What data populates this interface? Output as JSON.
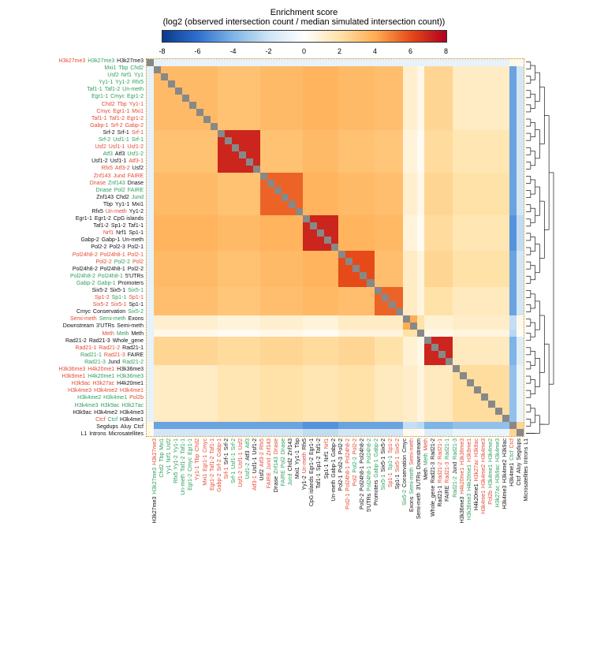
{
  "title": {
    "line1": "Enrichment score",
    "line2": "(log2 (observed intersection count / median simulated intersection count))"
  },
  "colorbar": {
    "min": -8,
    "max": 8,
    "ticks": [
      -8,
      -6,
      -4,
      -2,
      0,
      2,
      4,
      6,
      8
    ],
    "colors_stops": [
      "#0a3a8c",
      "#2e6fcf",
      "#7eb4e6",
      "#cfe4f5",
      "#ffffff",
      "#ffe2a8",
      "#ffad52",
      "#e64a19",
      "#b00020"
    ]
  },
  "label_colors": {
    "green": "#2e9e5b",
    "red": "#e34a33",
    "black": "#111111"
  },
  "row_labels": [
    [
      [
        "H3k27me3",
        "red"
      ],
      [
        "H3k27me3",
        "green"
      ],
      [
        "H3k27me3",
        "black"
      ]
    ],
    [
      [
        "Mxi1",
        "green"
      ],
      [
        "Tbp",
        "green"
      ],
      [
        "Chd2",
        "green"
      ]
    ],
    [
      [
        "Usf2",
        "green"
      ],
      [
        "Nrf1",
        "green"
      ],
      [
        "Yy1",
        "green"
      ]
    ],
    [
      [
        "Yy1-1",
        "green"
      ],
      [
        "Yy1-2",
        "green"
      ],
      [
        "Rfx5",
        "green"
      ]
    ],
    [
      [
        "Taf1-1",
        "green"
      ],
      [
        "Taf1-2",
        "green"
      ],
      [
        "Un-meth",
        "green"
      ]
    ],
    [
      [
        "Egr1-1",
        "green"
      ],
      [
        "Cmyc",
        "green"
      ],
      [
        "Egr1-2",
        "green"
      ]
    ],
    [
      [
        "Chd2",
        "red"
      ],
      [
        "Tbp",
        "red"
      ],
      [
        "Yy1-1",
        "red"
      ]
    ],
    [
      [
        "Cmyc",
        "red"
      ],
      [
        "Egr1-1",
        "red"
      ],
      [
        "Mxi1",
        "red"
      ]
    ],
    [
      [
        "Taf1-1",
        "red"
      ],
      [
        "Taf1-2",
        "red"
      ],
      [
        "Egr1-2",
        "red"
      ]
    ],
    [
      [
        "Gabp-1",
        "red"
      ],
      [
        "Srf-2",
        "red"
      ],
      [
        "Gabp-2",
        "red"
      ]
    ],
    [
      [
        "Srf-2",
        "black"
      ],
      [
        "Srf-1",
        "black"
      ],
      [
        "Srf-1",
        "red"
      ]
    ],
    [
      [
        "Srf-2",
        "green"
      ],
      [
        "Usf1-1",
        "green"
      ],
      [
        "Srf-1",
        "green"
      ]
    ],
    [
      [
        "Usf2",
        "red"
      ],
      [
        "Usf1-1",
        "red"
      ],
      [
        "Usf1-2",
        "red"
      ]
    ],
    [
      [
        "Atf3",
        "green"
      ],
      [
        "Atf3",
        "black"
      ],
      [
        "Usf1-2",
        "green"
      ]
    ],
    [
      [
        "Usf1-2",
        "black"
      ],
      [
        "Usf1-1",
        "black"
      ],
      [
        "Atf3-1",
        "red"
      ]
    ],
    [
      [
        "Rfx5",
        "red"
      ],
      [
        "Atf3-2",
        "red"
      ],
      [
        "Usf2",
        "black"
      ]
    ],
    [
      [
        "Znf143",
        "red"
      ],
      [
        "Jund",
        "red"
      ],
      [
        "FAIRE",
        "red"
      ]
    ],
    [
      [
        "Dnase",
        "red"
      ],
      [
        "Znf143",
        "green"
      ],
      [
        "Dnase",
        "black"
      ]
    ],
    [
      [
        "Dnase",
        "green"
      ],
      [
        "Pol2",
        "green"
      ],
      [
        "FAIRE",
        "green"
      ]
    ],
    [
      [
        "Znf143",
        "black"
      ],
      [
        "Chd2",
        "black"
      ],
      [
        "Jund",
        "green"
      ]
    ],
    [
      [
        "Tbp",
        "black"
      ],
      [
        "Yy1-1",
        "black"
      ],
      [
        "Mxi1",
        "black"
      ]
    ],
    [
      [
        "Rfx5",
        "black"
      ],
      [
        "Un-meth",
        "red"
      ],
      [
        "Yy1-2",
        "black"
      ]
    ],
    [
      [
        "Egr1-1",
        "black"
      ],
      [
        "Egr1-2",
        "black"
      ],
      [
        "CpG islands",
        "black"
      ]
    ],
    [
      [
        "Taf1-2",
        "black"
      ],
      [
        "Sp1-2",
        "black"
      ],
      [
        "Taf1-1",
        "black"
      ]
    ],
    [
      [
        "Nrf1",
        "red"
      ],
      [
        "Nrf1",
        "black"
      ],
      [
        "Sp1-1",
        "black"
      ]
    ],
    [
      [
        "Gabp-2",
        "black"
      ],
      [
        "Gabp-1",
        "black"
      ],
      [
        "Un-meth",
        "black"
      ]
    ],
    [
      [
        "Pol2-2",
        "black"
      ],
      [
        "Pol2-3",
        "black"
      ],
      [
        "Pol2-1",
        "black"
      ]
    ],
    [
      [
        "Pol24h8-2",
        "red"
      ],
      [
        "Pol24h8-1",
        "red"
      ],
      [
        "Pol2-1",
        "red"
      ]
    ],
    [
      [
        "Pol2-2",
        "red"
      ],
      [
        "Pol2-2",
        "green"
      ],
      [
        "Pol2",
        "red"
      ]
    ],
    [
      [
        "Pol24h8-2",
        "black"
      ],
      [
        "Pol24h8-1",
        "black"
      ],
      [
        "Pol2-2",
        "black"
      ]
    ],
    [
      [
        "Pol24h8-2",
        "green"
      ],
      [
        "Pol24h8-1",
        "green"
      ],
      [
        "5'UTRs",
        "black"
      ]
    ],
    [
      [
        "Gabp-2",
        "green"
      ],
      [
        "Gabp-1",
        "green"
      ],
      [
        "Promoters",
        "black"
      ]
    ],
    [
      [
        "Six5-2",
        "black"
      ],
      [
        "Six5-1",
        "black"
      ],
      [
        "Six5-1",
        "green"
      ]
    ],
    [
      [
        "Sp1-2",
        "red"
      ],
      [
        "Sp1-1",
        "green"
      ],
      [
        "Sp1-1",
        "red"
      ]
    ],
    [
      [
        "Six5-2",
        "red"
      ],
      [
        "Six5-1",
        "red"
      ],
      [
        "Sp1-1",
        "black"
      ]
    ],
    [
      [
        "Cmyc",
        "black"
      ],
      [
        "Conservation",
        "black"
      ],
      [
        "Six5-2",
        "green"
      ]
    ],
    [
      [
        "Semi-meth",
        "red"
      ],
      [
        "Semi-meth",
        "green"
      ],
      [
        "Exons",
        "black"
      ]
    ],
    [
      [
        "Downstream",
        "black"
      ],
      [
        "3'UTRs",
        "black"
      ],
      [
        "Semi-meth",
        "black"
      ]
    ],
    [
      [
        "Meth",
        "red"
      ],
      [
        "Meth",
        "green"
      ],
      [
        "Meth",
        "black"
      ]
    ],
    [
      [
        "Rad21-2",
        "black"
      ],
      [
        "Rad21-3",
        "black"
      ],
      [
        "Whole_gene",
        "black"
      ]
    ],
    [
      [
        "Rad21-1",
        "red"
      ],
      [
        "Rad21-2",
        "red"
      ],
      [
        "Rad21-1",
        "black"
      ]
    ],
    [
      [
        "Rad21-1",
        "green"
      ],
      [
        "Rad21-3",
        "red"
      ],
      [
        "FAIRE",
        "black"
      ]
    ],
    [
      [
        "Rad21-3",
        "green"
      ],
      [
        "Jund",
        "black"
      ],
      [
        "Rad21-2",
        "green"
      ]
    ],
    [
      [
        "H3k36me3",
        "red"
      ],
      [
        "H4k20me1",
        "red"
      ],
      [
        "H3k36me3",
        "black"
      ]
    ],
    [
      [
        "H3k9me1",
        "red"
      ],
      [
        "H4k20me1",
        "green"
      ],
      [
        "H3k36me3",
        "green"
      ]
    ],
    [
      [
        "H3k9ac",
        "red"
      ],
      [
        "H3k27ac",
        "red"
      ],
      [
        "H4k20me1",
        "black"
      ]
    ],
    [
      [
        "H3k4me3",
        "red"
      ],
      [
        "H3k4me2",
        "red"
      ],
      [
        "H3k4me1",
        "red"
      ]
    ],
    [
      [
        "H3k4me2",
        "green"
      ],
      [
        "H3k4me1",
        "green"
      ],
      [
        "Pol2b",
        "red"
      ]
    ],
    [
      [
        "H3k4me3",
        "green"
      ],
      [
        "H3k9ac",
        "green"
      ],
      [
        "H3k27ac",
        "green"
      ]
    ],
    [
      [
        "H3k9ac",
        "black"
      ],
      [
        "H3k4me2",
        "black"
      ],
      [
        "H3k4me3",
        "black"
      ]
    ],
    [
      [
        "Ctcf",
        "red"
      ],
      [
        "Ctcf",
        "green"
      ],
      [
        "H3k4me1",
        "black"
      ]
    ],
    [
      [
        "Segdups",
        "black"
      ],
      [
        "Aluy",
        "black"
      ],
      [
        "Ctcf",
        "black"
      ]
    ],
    [
      [
        "L1",
        "black"
      ],
      [
        "Introns",
        "black"
      ],
      [
        "Microsatellites",
        "black"
      ]
    ]
  ],
  "heatmap": {
    "type": "heatmap",
    "n": 53,
    "diag_color": "#888888",
    "background_color": "#ffffff",
    "grid_color": "none",
    "border_style": "1px dotted #b8860b",
    "blocks": [
      {
        "r0": 0,
        "r1": 0,
        "c0": 0,
        "c1": 0,
        "v": 0,
        "note": "H3k27me3 row/col",
        "row_override": [
          0,
          0,
          6
        ]
      },
      {
        "r0": 0,
        "r1": 0,
        "c0": 1,
        "c1": 50,
        "v": -2
      },
      {
        "r0": 0,
        "r1": 0,
        "c0": 51,
        "c1": 52,
        "v": 0.5
      },
      {
        "r0": 1,
        "r1": 9,
        "c0": 1,
        "c1": 35,
        "v": 3.5
      },
      {
        "r0": 1,
        "r1": 9,
        "c0": 36,
        "c1": 38,
        "v": 1
      },
      {
        "r0": 1,
        "r1": 9,
        "c0": 39,
        "c1": 42,
        "v": 2.5
      },
      {
        "r0": 1,
        "r1": 9,
        "c0": 43,
        "c1": 50,
        "v": 1.2
      },
      {
        "r0": 1,
        "r1": 9,
        "c0": 51,
        "c1": 52,
        "v": -4
      },
      {
        "r0": 10,
        "r1": 15,
        "c0": 1,
        "c1": 9,
        "v": 3
      },
      {
        "r0": 10,
        "r1": 15,
        "c0": 10,
        "c1": 15,
        "v": 7
      },
      {
        "r0": 10,
        "r1": 15,
        "c0": 16,
        "c1": 35,
        "v": 3
      },
      {
        "r0": 10,
        "r1": 15,
        "c0": 36,
        "c1": 38,
        "v": 0.5
      },
      {
        "r0": 10,
        "r1": 15,
        "c0": 39,
        "c1": 50,
        "v": 2
      },
      {
        "r0": 10,
        "r1": 15,
        "c0": 51,
        "c1": 52,
        "v": -4
      },
      {
        "r0": 16,
        "r1": 21,
        "c0": 1,
        "c1": 35,
        "v": 3.5
      },
      {
        "r0": 16,
        "r1": 21,
        "c0": 16,
        "c1": 21,
        "v": 5.5
      },
      {
        "r0": 16,
        "r1": 21,
        "c0": 36,
        "c1": 38,
        "v": 1
      },
      {
        "r0": 16,
        "r1": 21,
        "c0": 39,
        "c1": 50,
        "v": 2.5
      },
      {
        "r0": 16,
        "r1": 21,
        "c0": 51,
        "c1": 52,
        "v": -4
      },
      {
        "r0": 22,
        "r1": 26,
        "c0": 1,
        "c1": 35,
        "v": 4
      },
      {
        "r0": 22,
        "r1": 26,
        "c0": 22,
        "c1": 26,
        "v": 7
      },
      {
        "r0": 22,
        "r1": 26,
        "c0": 36,
        "c1": 38,
        "v": 0.5
      },
      {
        "r0": 22,
        "r1": 26,
        "c0": 39,
        "c1": 50,
        "v": 2
      },
      {
        "r0": 22,
        "r1": 26,
        "c0": 51,
        "c1": 52,
        "v": -5
      },
      {
        "r0": 27,
        "r1": 31,
        "c0": 1,
        "c1": 35,
        "v": 3.5
      },
      {
        "r0": 27,
        "r1": 31,
        "c0": 27,
        "c1": 31,
        "v": 6
      },
      {
        "r0": 27,
        "r1": 31,
        "c0": 36,
        "c1": 38,
        "v": 1.5
      },
      {
        "r0": 27,
        "r1": 31,
        "c0": 39,
        "c1": 50,
        "v": 2.5
      },
      {
        "r0": 27,
        "r1": 31,
        "c0": 51,
        "c1": 52,
        "v": -4
      },
      {
        "r0": 32,
        "r1": 35,
        "c0": 1,
        "c1": 35,
        "v": 3.2
      },
      {
        "r0": 32,
        "r1": 35,
        "c0": 32,
        "c1": 35,
        "v": 5.5
      },
      {
        "r0": 32,
        "r1": 35,
        "c0": 36,
        "c1": 50,
        "v": 1.5
      },
      {
        "r0": 32,
        "r1": 35,
        "c0": 51,
        "c1": 52,
        "v": -4
      },
      {
        "r0": 36,
        "r1": 38,
        "c0": 1,
        "c1": 35,
        "v": 1.2
      },
      {
        "r0": 36,
        "r1": 38,
        "c0": 36,
        "c1": 38,
        "v": 4
      },
      {
        "r0": 36,
        "r1": 38,
        "c0": 39,
        "c1": 50,
        "v": 1
      },
      {
        "r0": 36,
        "r1": 38,
        "c0": 51,
        "c1": 52,
        "v": 0.5
      },
      {
        "r0": 38,
        "r1": 38,
        "c0": 1,
        "c1": 52,
        "v": 0
      },
      {
        "r0": 39,
        "r1": 42,
        "c0": 1,
        "c1": 35,
        "v": 2.5
      },
      {
        "r0": 39,
        "r1": 42,
        "c0": 36,
        "c1": 38,
        "v": 1
      },
      {
        "r0": 39,
        "r1": 42,
        "c0": 39,
        "c1": 42,
        "v": 7
      },
      {
        "r0": 39,
        "r1": 42,
        "c0": 43,
        "c1": 50,
        "v": 1.5
      },
      {
        "r0": 39,
        "r1": 42,
        "c0": 51,
        "c1": 52,
        "v": -3
      },
      {
        "r0": 43,
        "r1": 50,
        "c0": 1,
        "c1": 42,
        "v": 1.5
      },
      {
        "r0": 43,
        "r1": 50,
        "c0": 43,
        "c1": 50,
        "v": 2.2
      },
      {
        "r0": 43,
        "r1": 50,
        "c0": 51,
        "c1": 52,
        "v": -2
      },
      {
        "r0": 51,
        "r1": 51,
        "c0": 0,
        "c1": 0,
        "v": 0.5
      },
      {
        "r0": 51,
        "r1": 51,
        "c0": 1,
        "c1": 50,
        "v": -5
      },
      {
        "r0": 51,
        "r1": 51,
        "c0": 51,
        "c1": 52,
        "v": 3
      },
      {
        "r0": 52,
        "r1": 52,
        "c0": 0,
        "c1": 50,
        "v": 0.3
      },
      {
        "r0": 52,
        "r1": 52,
        "c0": 51,
        "c1": 52,
        "v": 2
      }
    ]
  },
  "dendrogram_right": {
    "line_color": "#111111",
    "line_width": 0.7
  }
}
